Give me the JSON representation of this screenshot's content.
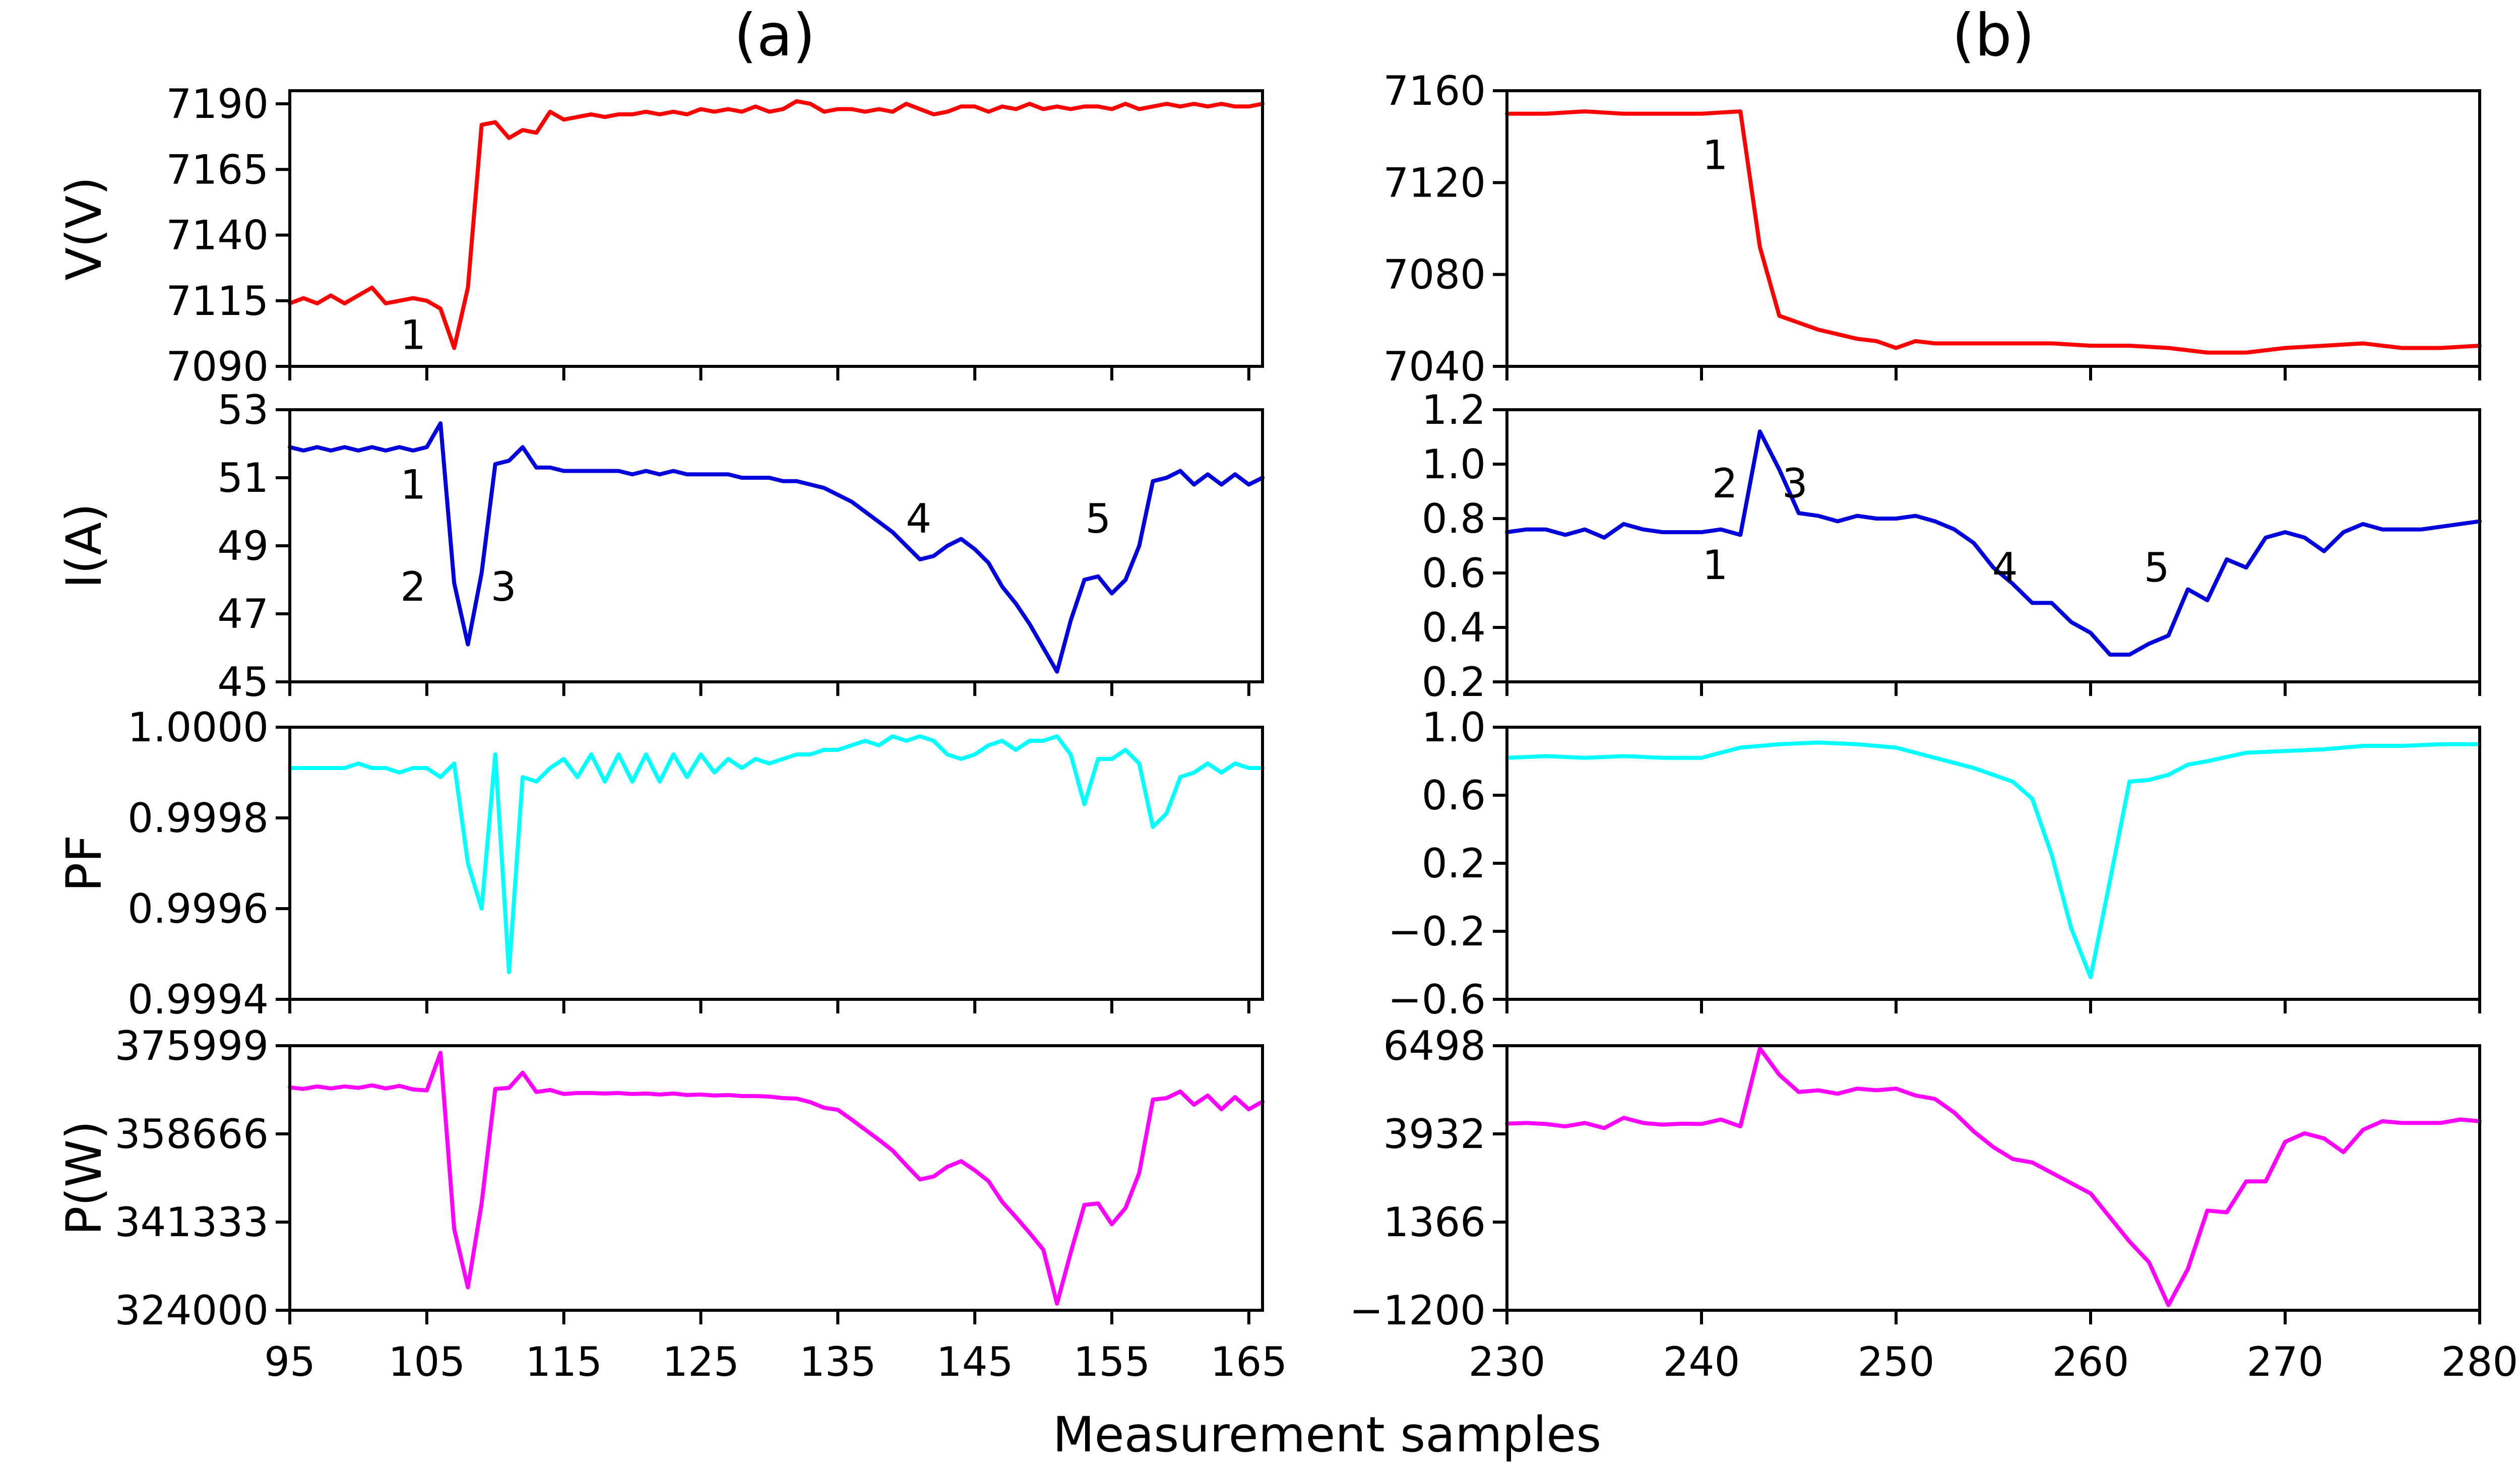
{
  "figure": {
    "xlabel": "Measurement samples",
    "column_titles": [
      "(a)",
      "(b)"
    ],
    "row_labels": [
      "V(V)",
      "I(A)",
      "PF",
      "P(W)"
    ]
  },
  "colors": {
    "voltage": "#ff0000",
    "current": "#0000dd",
    "pf": "#00ffff",
    "power": "#ff00ff"
  },
  "chart_data": [
    {
      "type": "line",
      "column": "(a)",
      "ylabel": "V(V)",
      "xlim": [
        95,
        166
      ],
      "ylim": [
        7090,
        7195
      ],
      "xticks": [
        95,
        105,
        115,
        125,
        135,
        145,
        155,
        165
      ],
      "yticks": [
        7090,
        7115,
        7140,
        7165,
        7190
      ],
      "ytick_labels": [
        "7090",
        "7115",
        "7140",
        "7165",
        "7190"
      ],
      "color": "#ff0000",
      "x": [
        95,
        96,
        97,
        98,
        99,
        100,
        101,
        102,
        103,
        104,
        105,
        106,
        107,
        108,
        109,
        110,
        111,
        112,
        113,
        114,
        115,
        116,
        117,
        118,
        119,
        120,
        121,
        122,
        123,
        124,
        125,
        126,
        127,
        128,
        129,
        130,
        131,
        132,
        133,
        134,
        135,
        136,
        137,
        138,
        139,
        140,
        141,
        142,
        143,
        144,
        145,
        146,
        147,
        148,
        149,
        150,
        151,
        152,
        153,
        154,
        155,
        156,
        157,
        158,
        159,
        160,
        161,
        162,
        163,
        164,
        165,
        166
      ],
      "y": [
        7114,
        7116,
        7114,
        7117,
        7114,
        7117,
        7120,
        7114,
        7115,
        7116,
        7115,
        7112,
        7097,
        7120,
        7182,
        7183,
        7177,
        7180,
        7179,
        7187,
        7184,
        7185,
        7186,
        7185,
        7186,
        7186,
        7187,
        7186,
        7187,
        7186,
        7188,
        7187,
        7188,
        7187,
        7189,
        7187,
        7188,
        7191,
        7190,
        7187,
        7188,
        7188,
        7187,
        7188,
        7187,
        7190,
        7188,
        7186,
        7187,
        7189,
        7189,
        7187,
        7189,
        7188,
        7190,
        7188,
        7189,
        7188,
        7189,
        7189,
        7188,
        7190,
        7188,
        7189,
        7190,
        7189,
        7190,
        7189,
        7190,
        7189,
        7189,
        7190
      ],
      "annotations": [
        {
          "text": "1",
          "x": 104,
          "y": 7102
        }
      ]
    },
    {
      "type": "line",
      "column": "(b)",
      "ylabel": "",
      "xlim": [
        230,
        280
      ],
      "ylim": [
        7040,
        7160
      ],
      "xticks": [
        230,
        240,
        250,
        260,
        270,
        280
      ],
      "yticks": [
        7040,
        7080,
        7120,
        7160
      ],
      "ytick_labels": [
        "7040",
        "7080",
        "7120",
        "7160"
      ],
      "color": "#ff0000",
      "x": [
        230,
        232,
        234,
        236,
        238,
        240,
        242,
        243,
        244,
        245,
        246,
        247,
        248,
        249,
        250,
        251,
        252,
        254,
        256,
        258,
        260,
        262,
        264,
        266,
        268,
        270,
        272,
        274,
        276,
        278,
        280
      ],
      "y": [
        7150,
        7150,
        7151,
        7150,
        7150,
        7150,
        7151,
        7092,
        7062,
        7059,
        7056,
        7054,
        7052,
        7051,
        7048,
        7051,
        7050,
        7050,
        7050,
        7050,
        7049,
        7049,
        7048,
        7046,
        7046,
        7048,
        7049,
        7050,
        7048,
        7048,
        7049
      ],
      "annotations": [
        {
          "text": "1",
          "x": 240.7,
          "y": 7132
        }
      ]
    },
    {
      "type": "line",
      "column": "(a)",
      "ylabel": "I(A)",
      "xlim": [
        95,
        166
      ],
      "ylim": [
        45,
        53
      ],
      "xticks": [
        95,
        105,
        115,
        125,
        135,
        145,
        155,
        165
      ],
      "yticks": [
        45,
        47,
        49,
        51,
        53
      ],
      "ytick_labels": [
        "45",
        "47",
        "49",
        "51",
        "53"
      ],
      "color": "#0000dd",
      "x": [
        95,
        96,
        97,
        98,
        99,
        100,
        101,
        102,
        103,
        104,
        105,
        106,
        107,
        108,
        109,
        110,
        111,
        112,
        113,
        114,
        115,
        116,
        117,
        118,
        119,
        120,
        121,
        122,
        123,
        124,
        125,
        126,
        127,
        128,
        129,
        130,
        131,
        132,
        133,
        134,
        135,
        136,
        137,
        138,
        139,
        140,
        141,
        142,
        143,
        144,
        145,
        146,
        147,
        148,
        149,
        150,
        151,
        152,
        153,
        154,
        155,
        156,
        157,
        158,
        159,
        160,
        161,
        162,
        163,
        164,
        165,
        166
      ],
      "y": [
        51.9,
        51.8,
        51.9,
        51.8,
        51.9,
        51.8,
        51.9,
        51.8,
        51.9,
        51.8,
        51.9,
        52.6,
        47.9,
        46.1,
        48.2,
        51.4,
        51.5,
        51.9,
        51.3,
        51.3,
        51.2,
        51.2,
        51.2,
        51.2,
        51.2,
        51.1,
        51.2,
        51.1,
        51.2,
        51.1,
        51.1,
        51.1,
        51.1,
        51.0,
        51.0,
        51.0,
        50.9,
        50.9,
        50.8,
        50.7,
        50.5,
        50.3,
        50.0,
        49.7,
        49.4,
        49.0,
        48.6,
        48.7,
        49.0,
        49.2,
        48.9,
        48.5,
        47.8,
        47.3,
        46.7,
        46.0,
        45.3,
        46.8,
        48.0,
        48.1,
        47.6,
        48.0,
        49.0,
        50.9,
        51.0,
        51.2,
        50.8,
        51.1,
        50.8,
        51.1,
        50.8,
        51.0
      ],
      "annotations": [
        {
          "text": "1",
          "x": 104,
          "y": 50.8
        },
        {
          "text": "2",
          "x": 104,
          "y": 47.8
        },
        {
          "text": "3",
          "x": 110.6,
          "y": 47.8
        },
        {
          "text": "4",
          "x": 140.9,
          "y": 49.8
        },
        {
          "text": "5",
          "x": 154,
          "y": 49.8
        }
      ]
    },
    {
      "type": "line",
      "column": "(b)",
      "ylabel": "",
      "xlim": [
        230,
        280
      ],
      "ylim": [
        0.2,
        1.2
      ],
      "xticks": [
        230,
        240,
        250,
        260,
        270,
        280
      ],
      "yticks": [
        0.2,
        0.4,
        0.6,
        0.8,
        1.0,
        1.2
      ],
      "ytick_labels": [
        "0.2",
        "0.4",
        "0.6",
        "0.8",
        "1.0",
        "1.2"
      ],
      "color": "#0000dd",
      "x": [
        230,
        231,
        232,
        233,
        234,
        235,
        236,
        237,
        238,
        239,
        240,
        241,
        242,
        243,
        244,
        245,
        246,
        247,
        248,
        249,
        250,
        251,
        252,
        253,
        254,
        255,
        256,
        257,
        258,
        259,
        260,
        261,
        262,
        263,
        264,
        265,
        266,
        267,
        268,
        269,
        270,
        271,
        272,
        273,
        274,
        275,
        276,
        277,
        278,
        279,
        280
      ],
      "y": [
        0.75,
        0.76,
        0.76,
        0.74,
        0.76,
        0.73,
        0.78,
        0.76,
        0.75,
        0.75,
        0.75,
        0.76,
        0.74,
        1.12,
        0.98,
        0.82,
        0.81,
        0.79,
        0.81,
        0.8,
        0.8,
        0.81,
        0.79,
        0.76,
        0.71,
        0.62,
        0.56,
        0.49,
        0.49,
        0.42,
        0.38,
        0.3,
        0.3,
        0.34,
        0.37,
        0.54,
        0.5,
        0.65,
        0.62,
        0.73,
        0.75,
        0.73,
        0.68,
        0.75,
        0.78,
        0.76,
        0.76,
        0.76,
        0.77,
        0.78,
        0.79
      ],
      "annotations": [
        {
          "text": "2",
          "x": 241.2,
          "y": 0.93
        },
        {
          "text": "3",
          "x": 244.8,
          "y": 0.93
        },
        {
          "text": "1",
          "x": 240.7,
          "y": 0.63
        },
        {
          "text": "4",
          "x": 255.6,
          "y": 0.62
        },
        {
          "text": "5",
          "x": 263.4,
          "y": 0.62
        }
      ]
    },
    {
      "type": "line",
      "column": "(a)",
      "ylabel": "PF",
      "xlim": [
        95,
        166
      ],
      "ylim": [
        0.9994,
        1.0
      ],
      "xticks": [
        95,
        105,
        115,
        125,
        135,
        145,
        155,
        165
      ],
      "yticks": [
        0.9994,
        0.9996,
        0.9998,
        1.0
      ],
      "ytick_labels": [
        "0.9994",
        "0.9996",
        "0.9998",
        "1.0000"
      ],
      "color": "#00ffff",
      "x": [
        95,
        96,
        97,
        98,
        99,
        100,
        101,
        102,
        103,
        104,
        105,
        106,
        107,
        108,
        109,
        110,
        111,
        112,
        113,
        114,
        115,
        116,
        117,
        118,
        119,
        120,
        121,
        122,
        123,
        124,
        125,
        126,
        127,
        128,
        129,
        130,
        131,
        132,
        133,
        134,
        135,
        136,
        137,
        138,
        139,
        140,
        141,
        142,
        143,
        144,
        145,
        146,
        147,
        148,
        149,
        150,
        151,
        152,
        153,
        154,
        155,
        156,
        157,
        158,
        159,
        160,
        161,
        162,
        163,
        164,
        165,
        166
      ],
      "y": [
        0.99991,
        0.99991,
        0.99991,
        0.99991,
        0.99991,
        0.99992,
        0.99991,
        0.99991,
        0.9999,
        0.99991,
        0.99991,
        0.99989,
        0.99992,
        0.9997,
        0.9996,
        0.99994,
        0.99946,
        0.99989,
        0.99988,
        0.99991,
        0.99993,
        0.99989,
        0.99994,
        0.99988,
        0.99994,
        0.99988,
        0.99994,
        0.99988,
        0.99994,
        0.99989,
        0.99994,
        0.9999,
        0.99993,
        0.99991,
        0.99993,
        0.99992,
        0.99993,
        0.99994,
        0.99994,
        0.99995,
        0.99995,
        0.99996,
        0.99997,
        0.99996,
        0.99998,
        0.99997,
        0.99998,
        0.99997,
        0.99994,
        0.99993,
        0.99994,
        0.99996,
        0.99997,
        0.99995,
        0.99997,
        0.99997,
        0.99998,
        0.99994,
        0.99983,
        0.99993,
        0.99993,
        0.99995,
        0.99992,
        0.99978,
        0.99981,
        0.99989,
        0.9999,
        0.99992,
        0.9999,
        0.99992,
        0.99991,
        0.99991
      ]
    },
    {
      "type": "line",
      "column": "(b)",
      "ylabel": "",
      "xlim": [
        230,
        280
      ],
      "ylim": [
        -0.6,
        1.0
      ],
      "xticks": [
        230,
        240,
        250,
        260,
        270,
        280
      ],
      "yticks": [
        -0.6,
        -0.2,
        0.2,
        0.6,
        1.0
      ],
      "ytick_labels": [
        "−0.6",
        "−0.2",
        "0.2",
        "0.6",
        "1.0"
      ],
      "color": "#00ffff",
      "x": [
        230,
        232,
        234,
        236,
        238,
        240,
        242,
        244,
        246,
        248,
        250,
        252,
        254,
        256,
        257,
        258,
        259,
        260,
        261,
        262,
        263,
        264,
        265,
        266,
        268,
        270,
        272,
        274,
        276,
        278,
        280
      ],
      "y": [
        0.82,
        0.83,
        0.82,
        0.83,
        0.82,
        0.82,
        0.88,
        0.9,
        0.91,
        0.9,
        0.88,
        0.82,
        0.76,
        0.68,
        0.58,
        0.25,
        -0.18,
        -0.47,
        0.1,
        0.68,
        0.69,
        0.72,
        0.78,
        0.8,
        0.85,
        0.86,
        0.87,
        0.89,
        0.89,
        0.9,
        0.9
      ]
    },
    {
      "type": "line",
      "column": "(a)",
      "ylabel": "P(W)",
      "xlim": [
        95,
        166
      ],
      "ylim": [
        324000,
        375999
      ],
      "xticks": [
        95,
        105,
        115,
        125,
        135,
        145,
        155,
        165
      ],
      "yticks": [
        324000,
        341333,
        358666,
        375999
      ],
      "ytick_labels": [
        "324000",
        "341333",
        "358666",
        "375999"
      ],
      "color": "#ff00ff",
      "x": [
        95,
        96,
        97,
        98,
        99,
        100,
        101,
        102,
        103,
        104,
        105,
        106,
        107,
        108,
        109,
        110,
        111,
        112,
        113,
        114,
        115,
        116,
        117,
        118,
        119,
        120,
        121,
        122,
        123,
        124,
        125,
        126,
        127,
        128,
        129,
        130,
        131,
        132,
        133,
        134,
        135,
        136,
        137,
        138,
        139,
        140,
        141,
        142,
        143,
        144,
        145,
        146,
        147,
        148,
        149,
        150,
        151,
        152,
        153,
        154,
        155,
        156,
        157,
        158,
        159,
        160,
        161,
        162,
        163,
        164,
        165,
        166
      ],
      "y": [
        367800,
        367500,
        368000,
        367600,
        368000,
        367700,
        368200,
        367600,
        368100,
        367400,
        367200,
        374600,
        340000,
        328500,
        345000,
        367500,
        367700,
        370700,
        366900,
        367300,
        366500,
        366700,
        366700,
        366600,
        366700,
        366500,
        366600,
        366400,
        366600,
        366300,
        366400,
        366200,
        366300,
        366100,
        366100,
        366000,
        365700,
        365600,
        364900,
        363800,
        363400,
        361500,
        359500,
        357500,
        355400,
        352500,
        349700,
        350300,
        352200,
        353300,
        351500,
        349400,
        345300,
        342300,
        339200,
        335900,
        325300,
        335300,
        344700,
        345000,
        340900,
        344100,
        351000,
        365400,
        365700,
        367000,
        364400,
        366200,
        363500,
        365900,
        363500,
        365000
      ]
    },
    {
      "type": "line",
      "column": "(b)",
      "ylabel": "",
      "xlim": [
        230,
        280
      ],
      "ylim": [
        -1200,
        6498
      ],
      "xticks": [
        230,
        240,
        250,
        260,
        270,
        280
      ],
      "yticks": [
        -1200,
        1366,
        3932,
        6498
      ],
      "ytick_labels": [
        "−1200",
        "1366",
        "3932",
        "6498"
      ],
      "color": "#ff00ff",
      "x": [
        230,
        231,
        232,
        233,
        234,
        235,
        236,
        237,
        238,
        239,
        240,
        241,
        242,
        243,
        244,
        245,
        246,
        247,
        248,
        249,
        250,
        251,
        252,
        253,
        254,
        255,
        256,
        257,
        258,
        259,
        260,
        261,
        262,
        263,
        264,
        265,
        266,
        267,
        268,
        269,
        270,
        271,
        272,
        273,
        274,
        275,
        276,
        277,
        278,
        279,
        280
      ],
      "y": [
        4230,
        4250,
        4220,
        4150,
        4250,
        4100,
        4400,
        4250,
        4200,
        4230,
        4220,
        4350,
        4150,
        6420,
        5650,
        5150,
        5200,
        5100,
        5250,
        5200,
        5250,
        5050,
        4950,
        4550,
        4000,
        3550,
        3200,
        3100,
        2800,
        2500,
        2200,
        1500,
        800,
        200,
        -1050,
        0,
        1700,
        1650,
        2550,
        2550,
        3700,
        3950,
        3800,
        3400,
        4050,
        4300,
        4250,
        4250,
        4250,
        4350,
        4300
      ]
    }
  ]
}
